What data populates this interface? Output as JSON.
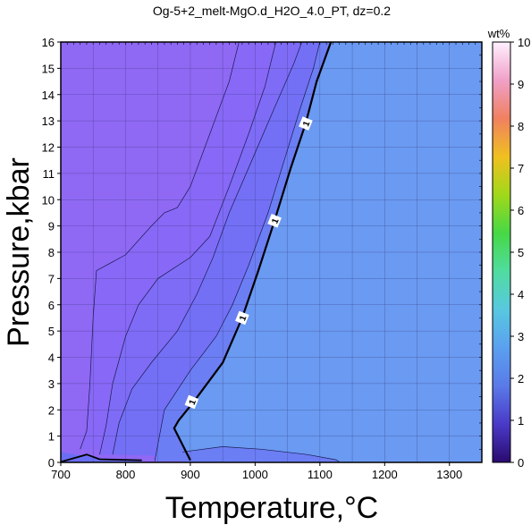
{
  "chart_data": {
    "type": "heatmap",
    "title": "Og-5+2_melt-MgO.d_H2O_4.0_PT, dz=0.2",
    "xlabel": "Temperature,°C",
    "ylabel": "Pressure,kbar",
    "xlim": [
      700,
      1350
    ],
    "ylim": [
      0,
      16
    ],
    "x_ticks": [
      "700",
      "800",
      "900",
      "1000",
      "1100",
      "1200",
      "1300"
    ],
    "y_ticks": [
      "0",
      "1",
      "2",
      "3",
      "4",
      "5",
      "6",
      "7",
      "8",
      "9",
      "10",
      "11",
      "12",
      "13",
      "14",
      "15",
      "16"
    ],
    "grid": true,
    "colorbar": {
      "label": "wt%",
      "range": [
        0,
        10
      ],
      "ticks": [
        "0",
        "1",
        "2",
        "3",
        "4",
        "5",
        "6",
        "7",
        "8",
        "9",
        "10"
      ],
      "colors": [
        "#2a0a6e",
        "#4a3ac8",
        "#5a7ae8",
        "#5aa0f0",
        "#58c8e0",
        "#50dca0",
        "#46d846",
        "#a0d81a",
        "#f0c020",
        "#f08060",
        "#f0a0c8",
        "#fff0ff"
      ]
    },
    "regions": [
      {
        "value": 0.0,
        "color": "#8f68f4"
      },
      {
        "value": 0.2,
        "color": "#8868f6"
      },
      {
        "value": 0.4,
        "color": "#7e6cf6"
      },
      {
        "value": 0.6,
        "color": "#7370f6"
      },
      {
        "value": 0.8,
        "color": "#6c7ef4"
      },
      {
        "value": 1.0,
        "color": "#6a9af2"
      }
    ],
    "contour_label": "1",
    "contour_label_points": [
      [
        902,
        2.3
      ],
      [
        980,
        5.5
      ],
      [
        1030,
        9.2
      ],
      [
        1078,
        12.9
      ]
    ],
    "contour_1": [
      [
        825,
        0.08
      ],
      [
        900,
        0.08
      ],
      [
        875,
        1.3
      ],
      [
        882,
        1.6
      ],
      [
        905,
        2.3
      ],
      [
        950,
        3.8
      ],
      [
        980,
        5.5
      ],
      [
        1005,
        7.3
      ],
      [
        1030,
        9.2
      ],
      [
        1055,
        11.2
      ],
      [
        1078,
        12.9
      ],
      [
        1095,
        14.5
      ],
      [
        1117,
        16
      ]
    ],
    "contour_08": [
      [
        888,
        0.4
      ],
      [
        950,
        0.6
      ],
      [
        1010,
        0.5
      ],
      [
        1080,
        0.3
      ],
      [
        1125,
        0.1
      ],
      [
        1130,
        0.02
      ]
    ],
    "contour_08b": [
      [
        845,
        0.05
      ],
      [
        860,
        2.0
      ],
      [
        900,
        3.5
      ],
      [
        940,
        4.8
      ],
      [
        965,
        6.0
      ],
      [
        990,
        7.5
      ],
      [
        1020,
        9.5
      ],
      [
        1045,
        11.5
      ],
      [
        1070,
        13.5
      ],
      [
        1090,
        15.0
      ],
      [
        1100,
        16
      ]
    ],
    "contour_06": [
      [
        780,
        0.3
      ],
      [
        790,
        1.5
      ],
      [
        810,
        2.8
      ],
      [
        840,
        3.8
      ],
      [
        880,
        5.0
      ],
      [
        910,
        6.4
      ],
      [
        935,
        7.8
      ],
      [
        960,
        9.5
      ],
      [
        995,
        11.5
      ],
      [
        1030,
        13.5
      ],
      [
        1060,
        15.2
      ],
      [
        1072,
        16
      ]
    ],
    "contour_04": [
      [
        760,
        0.3
      ],
      [
        770,
        1.4
      ],
      [
        780,
        3.0
      ],
      [
        800,
        4.8
      ],
      [
        820,
        6.0
      ],
      [
        850,
        7.0
      ],
      [
        900,
        7.8
      ],
      [
        930,
        8.6
      ],
      [
        960,
        10.5
      ],
      [
        990,
        12.5
      ],
      [
        1015,
        14.3
      ],
      [
        1032,
        16
      ]
    ],
    "contour_02": [
      [
        730,
        0.5
      ],
      [
        740,
        1.2
      ],
      [
        745,
        3.0
      ],
      [
        750,
        5.5
      ],
      [
        755,
        7.3
      ],
      [
        800,
        7.9
      ],
      [
        840,
        9.0
      ],
      [
        860,
        9.5
      ],
      [
        880,
        9.7
      ],
      [
        900,
        10.5
      ],
      [
        930,
        12.5
      ],
      [
        960,
        14.5
      ],
      [
        975,
        16
      ]
    ]
  }
}
